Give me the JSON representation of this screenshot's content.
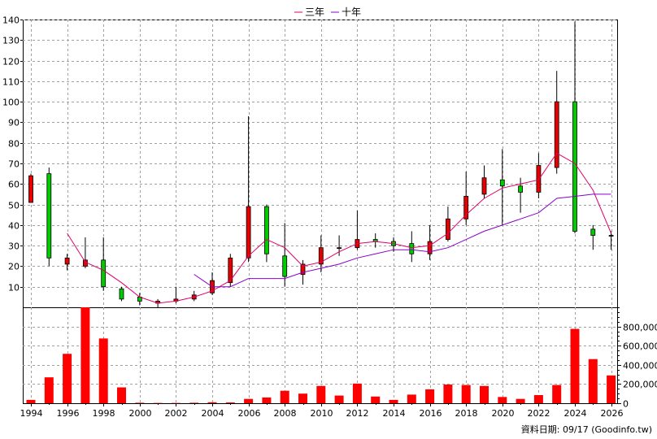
{
  "chart_data": [
    {
      "type": "candlestick",
      "x": [
        "1994",
        "1995",
        "1996",
        "1997",
        "1998",
        "1999",
        "2000",
        "2001",
        "2002",
        "2003",
        "2004",
        "2005",
        "2006",
        "2007",
        "2008",
        "2009",
        "2010",
        "2011",
        "2012",
        "2013",
        "2014",
        "2015",
        "2016",
        "2017",
        "2018",
        "2019",
        "2020",
        "2021",
        "2022",
        "2023",
        "2024",
        "2025",
        "2026"
      ],
      "candles": [
        {
          "o": 51,
          "c": 64,
          "h": 65,
          "l": 51
        },
        {
          "o": 65,
          "c": 24,
          "h": 68,
          "l": 20
        },
        {
          "o": 21,
          "c": 24,
          "h": 26,
          "l": 18
        },
        {
          "o": 20,
          "c": 23,
          "h": 34,
          "l": 19
        },
        {
          "o": 23,
          "c": 10,
          "h": 34,
          "l": 8
        },
        {
          "o": 9,
          "c": 4,
          "h": 10,
          "l": 3
        },
        {
          "o": 5,
          "c": 3,
          "h": 7,
          "l": 1
        },
        {
          "o": 2,
          "c": 3,
          "h": 4,
          "l": 0
        },
        {
          "o": 3,
          "c": 4,
          "h": 10,
          "l": 2
        },
        {
          "o": 4,
          "c": 6,
          "h": 8,
          "l": 3
        },
        {
          "o": 7,
          "c": 13,
          "h": 17,
          "l": 6
        },
        {
          "o": 12,
          "c": 24,
          "h": 26,
          "l": 10
        },
        {
          "o": 24,
          "c": 49,
          "h": 93,
          "l": 22
        },
        {
          "o": 49,
          "c": 26,
          "h": 50,
          "l": 22
        },
        {
          "o": 25,
          "c": 15,
          "h": 41,
          "l": 10
        },
        {
          "o": 16,
          "c": 21,
          "h": 23,
          "l": 11
        },
        {
          "o": 21,
          "c": 29,
          "h": 35,
          "l": 17
        },
        {
          "o": 29,
          "c": 29,
          "h": 35,
          "l": 25
        },
        {
          "o": 29,
          "c": 33,
          "h": 47,
          "l": 28
        },
        {
          "o": 33,
          "c": 32,
          "h": 36,
          "l": 29
        },
        {
          "o": 32,
          "c": 30,
          "h": 34,
          "l": 27
        },
        {
          "o": 31,
          "c": 26,
          "h": 37,
          "l": 22
        },
        {
          "o": 26,
          "c": 32,
          "h": 40,
          "l": 23
        },
        {
          "o": 33,
          "c": 43,
          "h": 49,
          "l": 32
        },
        {
          "o": 43,
          "c": 54,
          "h": 66,
          "l": 40
        },
        {
          "o": 55,
          "c": 63,
          "h": 69,
          "l": 53
        },
        {
          "o": 62,
          "c": 59,
          "h": 77,
          "l": 40
        },
        {
          "o": 59,
          "c": 56,
          "h": 63,
          "l": 46
        },
        {
          "o": 56,
          "c": 69,
          "h": 75,
          "l": 53
        },
        {
          "o": 68,
          "c": 100,
          "h": 115,
          "l": 65
        },
        {
          "o": 100,
          "c": 37,
          "h": 139,
          "l": 36
        },
        {
          "o": 38,
          "c": 35,
          "h": 40,
          "l": 28
        },
        {
          "o": 35,
          "c": 35,
          "h": 37,
          "l": 28
        }
      ],
      "series": [
        {
          "name": "三年",
          "color": "#e0006a",
          "x": [
            "1996",
            "1997",
            "1998",
            "1999",
            "2000",
            "2001",
            "2002",
            "2003",
            "2004",
            "2005",
            "2006",
            "2007",
            "2008",
            "2009",
            "2010",
            "2011",
            "2012",
            "2013",
            "2014",
            "2015",
            "2016",
            "2017",
            "2018",
            "2019",
            "2020",
            "2021",
            "2022",
            "2023",
            "2024",
            "2025",
            "2026"
          ],
          "values": [
            36,
            22,
            18,
            12,
            5,
            2,
            3,
            5,
            8,
            13,
            25,
            33,
            29,
            20,
            22,
            27,
            31,
            32,
            31,
            29,
            30,
            36,
            45,
            53,
            58,
            60,
            62,
            75,
            70,
            57,
            36
          ]
        },
        {
          "name": "十年",
          "color": "#8800cc",
          "x": [
            "2003",
            "2004",
            "2005",
            "2006",
            "2007",
            "2008",
            "2009",
            "2010",
            "2011",
            "2012",
            "2013",
            "2014",
            "2015",
            "2016",
            "2017",
            "2018",
            "2019",
            "2020",
            "2021",
            "2022",
            "2023",
            "2024",
            "2025",
            "2026"
          ],
          "values": [
            16,
            10,
            10,
            14,
            14,
            14,
            17,
            19,
            21,
            24,
            26,
            28,
            28,
            27,
            29,
            33,
            37,
            40,
            43,
            46,
            53,
            54,
            55,
            55
          ]
        }
      ],
      "ylim": [
        0,
        140
      ],
      "yticks": [
        10,
        20,
        30,
        40,
        50,
        60,
        70,
        80,
        90,
        100,
        110,
        120,
        130,
        140
      ],
      "colors": {
        "up": "#e60000",
        "down": "#00cc00",
        "grid": "#a0a0a0"
      },
      "grid": true,
      "legend": "top-center"
    },
    {
      "type": "bar",
      "x": [
        "1994",
        "1995",
        "1996",
        "1997",
        "1998",
        "1999",
        "2000",
        "2001",
        "2002",
        "2003",
        "2004",
        "2005",
        "2006",
        "2007",
        "2008",
        "2009",
        "2010",
        "2011",
        "2012",
        "2013",
        "2014",
        "2015",
        "2016",
        "2017",
        "2018",
        "2019",
        "2020",
        "2021",
        "2022",
        "2023",
        "2024",
        "2025",
        "2026"
      ],
      "values": [
        35000,
        270000,
        515000,
        1000000,
        675000,
        165000,
        5000,
        3000,
        3000,
        5000,
        10000,
        8000,
        45000,
        60000,
        130000,
        100000,
        180000,
        80000,
        205000,
        70000,
        35000,
        90000,
        145000,
        195000,
        190000,
        180000,
        65000,
        45000,
        85000,
        190000,
        775000,
        460000,
        290000
      ],
      "ylim": [
        0,
        1000000
      ],
      "yticks": [
        "0",
        "200,000",
        "400,000",
        "600,000",
        "800,000"
      ],
      "yticks_values": [
        0,
        200000,
        400000,
        600000,
        800000
      ],
      "colors": {
        "bar": "#ff0000"
      },
      "grid": true
    }
  ],
  "xticks": [
    "1994",
    "1996",
    "1998",
    "2000",
    "2002",
    "2004",
    "2006",
    "2008",
    "2010",
    "2012",
    "2014",
    "2016",
    "2018",
    "2020",
    "2022",
    "2024",
    "2026"
  ],
  "footer": "資料日期: 09/17  (Goodinfo.tw)"
}
